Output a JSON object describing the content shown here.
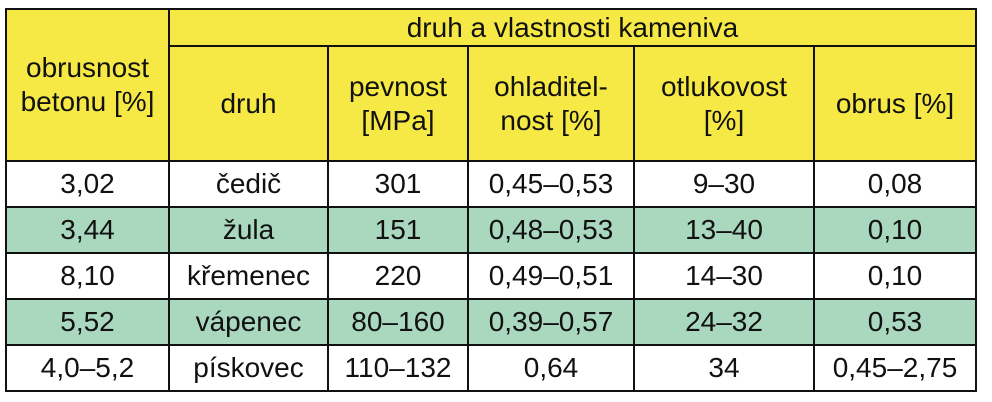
{
  "header": {
    "first_column": [
      "obrusnost",
      "betonu [%]"
    ],
    "group": "druh a vlastnosti kameniva",
    "columns": [
      [
        "druh"
      ],
      [
        "pevnost",
        "[MPa]"
      ],
      [
        "ohladitel-",
        "nost [%]"
      ],
      [
        "otlukovost",
        "[%]"
      ],
      [
        "obrus [%]"
      ]
    ]
  },
  "table": {
    "rows": [
      [
        "3,02",
        "čedič",
        "301",
        "0,45–0,53",
        "9–30",
        "0,08"
      ],
      [
        "3,44",
        "žula",
        "151",
        "0,48–0,53",
        "13–40",
        "0,10"
      ],
      [
        "8,10",
        "křemenec",
        "220",
        "0,49–0,51",
        "14–30",
        "0,10"
      ],
      [
        "5,52",
        "vápenec",
        "80–160",
        "0,39–0,57",
        "24–32",
        "0,53"
      ],
      [
        "4,0–5,2",
        "pískovec",
        "110–132",
        "0,64",
        "34",
        "0,45–2,75"
      ]
    ]
  }
}
